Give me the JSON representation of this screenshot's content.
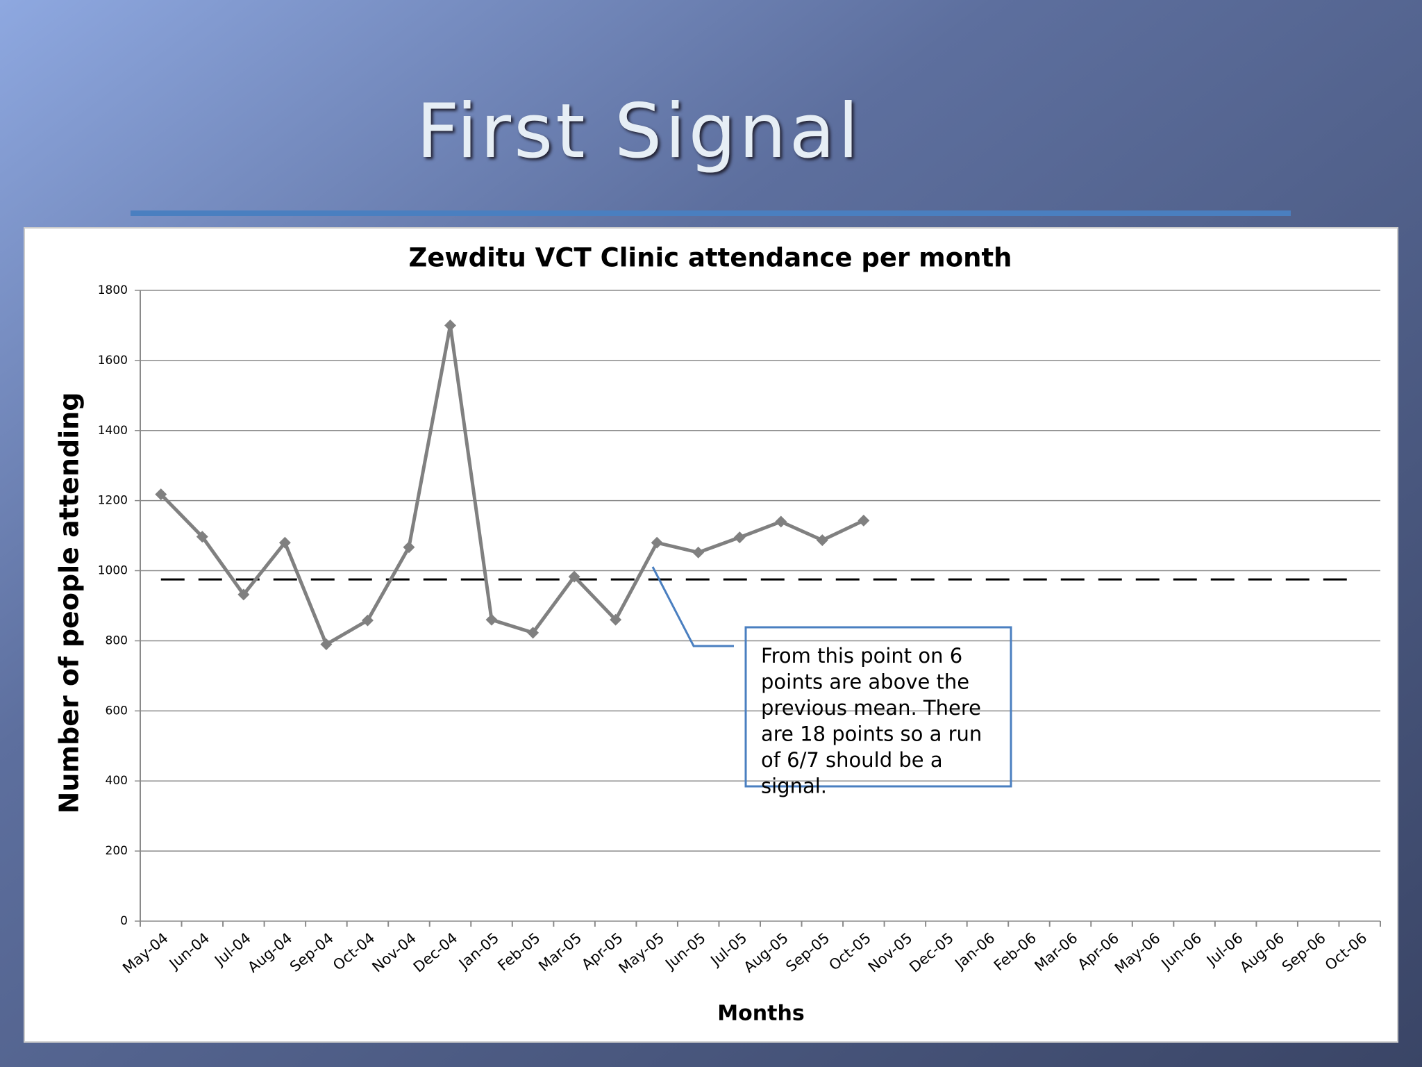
{
  "slide_title": "First Signal",
  "chart_data": {
    "type": "line",
    "title": "Zewditu VCT Clinic attendance per month",
    "x_label": "Months",
    "y_label": "Number of people attending",
    "categories": [
      "May-04",
      "Jun-04",
      "Jul-04",
      "Aug-04",
      "Sep-04",
      "Oct-04",
      "Nov-04",
      "Dec-04",
      "Jan-05",
      "Feb-05",
      "Mar-05",
      "Apr-05",
      "May-05",
      "Jun-05",
      "Jul-05",
      "Aug-05",
      "Sep-05",
      "Oct-05",
      "Nov-05",
      "Dec-05",
      "Jan-06",
      "Feb-06",
      "Mar-06",
      "Apr-06",
      "May-06",
      "Jun-06",
      "Jul-06",
      "Aug-06",
      "Sep-06",
      "Oct-06"
    ],
    "series": [
      {
        "color": "#808080",
        "values": [
          1218,
          1097,
          932,
          1080,
          790,
          858,
          1067,
          1700,
          860,
          823,
          983,
          860,
          1080,
          1052,
          1095,
          1140,
          1087,
          1143,
          null,
          null,
          null,
          null,
          null,
          null,
          null,
          null,
          null,
          null,
          null,
          null
        ]
      }
    ],
    "mean_line": {
      "value": 975,
      "color": "#000000"
    },
    "ylim": [
      0,
      1800
    ],
    "yticks": [
      0,
      200,
      400,
      600,
      800,
      1000,
      1200,
      1400,
      1600,
      1800
    ],
    "grid": true,
    "annotation": [
      "From this point on 6",
      "points are above the",
      "previous mean. There",
      "are 18 points so a run",
      "of 6/7 should be a",
      "signal."
    ]
  }
}
